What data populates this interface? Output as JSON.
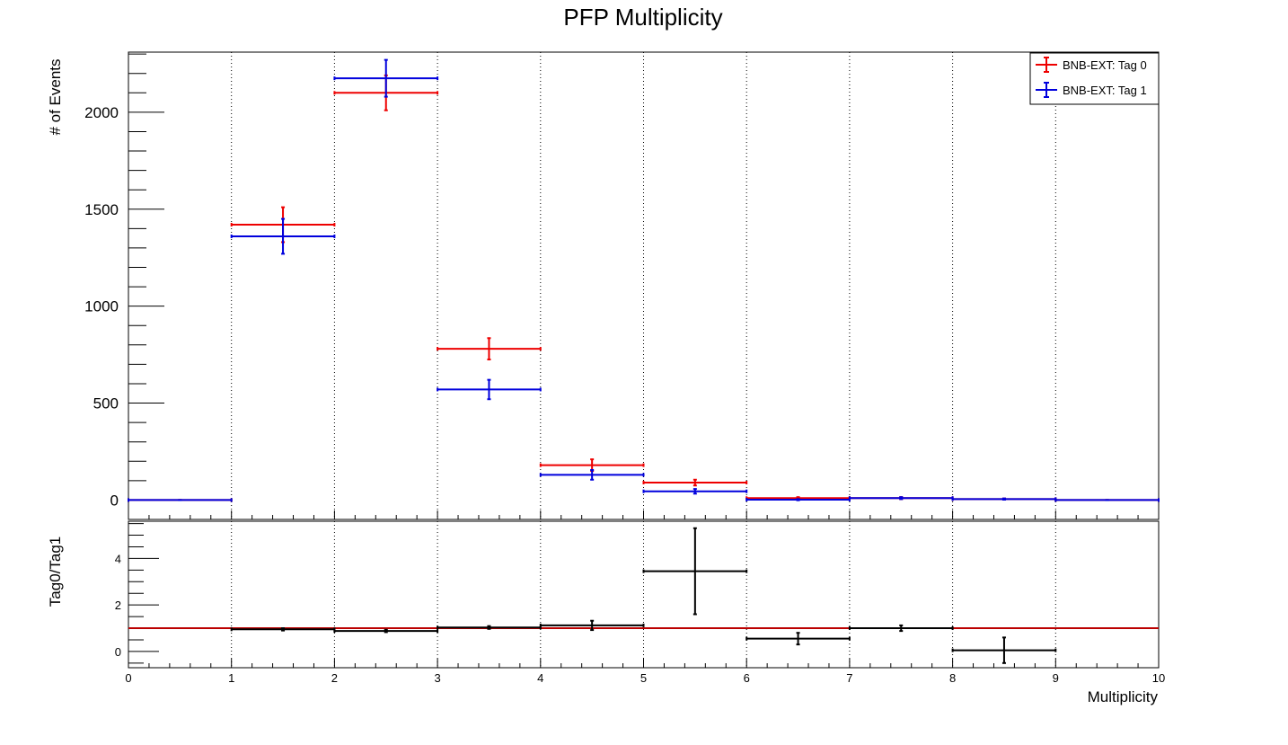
{
  "chart_data": {
    "type": "scatter",
    "title": "PFP Multiplicity",
    "xlabel": "Multiplicity",
    "xlim": [
      0,
      10
    ],
    "x_ticks": [
      "0",
      "1",
      "2",
      "3",
      "4",
      "5",
      "6",
      "7",
      "8",
      "9",
      "10"
    ],
    "bin_edges": [
      0,
      1,
      2,
      3,
      4,
      5,
      6,
      7,
      8,
      9,
      10
    ],
    "grid": "vertical dotted",
    "legend_position": "top-right",
    "top_panel": {
      "ylabel": "# of Events",
      "ylim": [
        -100,
        2310
      ],
      "y_ticks": [
        0,
        500,
        1000,
        1500,
        2000
      ],
      "y_tick_labels": [
        "0",
        "500",
        "1000",
        "1500",
        "2000"
      ],
      "series": [
        {
          "name": "BNB-EXT: Tag 0",
          "color": "#ee0000",
          "values": [
            0,
            1420,
            2100,
            780,
            180,
            90,
            10,
            10,
            5,
            0
          ],
          "errors": [
            0,
            90,
            90,
            55,
            30,
            15,
            5,
            5,
            3,
            0
          ]
        },
        {
          "name": "BNB-EXT: Tag 1",
          "color": "#0000dd",
          "values": [
            0,
            1360,
            2175,
            570,
            130,
            45,
            2,
            10,
            5,
            0
          ],
          "errors": [
            0,
            90,
            95,
            50,
            25,
            12,
            3,
            5,
            3,
            0
          ]
        }
      ]
    },
    "bottom_panel": {
      "ylabel": "Tag0/Tag1",
      "ylim": [
        -0.7,
        5.6
      ],
      "y_ticks": [
        0,
        2,
        4
      ],
      "y_tick_labels": [
        "0",
        "2",
        "4"
      ],
      "reference_line": {
        "y": 1.0,
        "color": "#bb0000"
      },
      "ratio": {
        "color": "#000000",
        "bins": [
          2,
          3,
          4,
          5,
          6,
          7,
          8,
          9
        ],
        "values": [
          0.95,
          0.88,
          1.03,
          1.12,
          3.45,
          0.55,
          1.0,
          0.05
        ],
        "errors": [
          0.05,
          0.05,
          0.06,
          0.2,
          1.85,
          0.25,
          0.12,
          0.55
        ]
      }
    }
  }
}
